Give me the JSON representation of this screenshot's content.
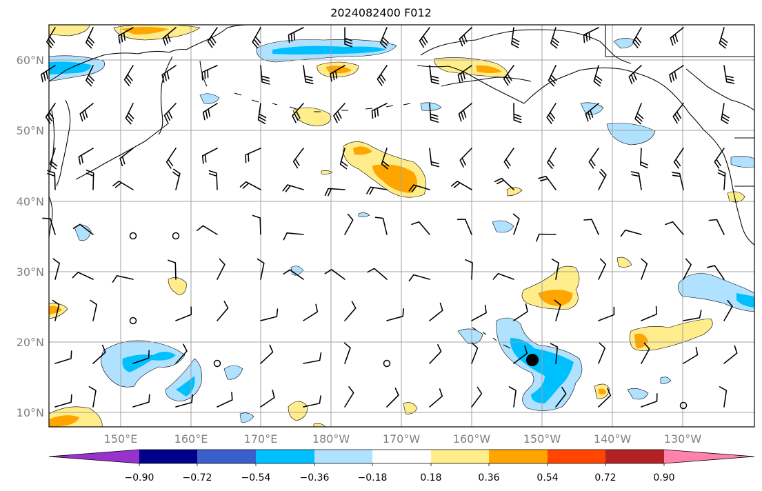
{
  "title": "2024082400 F012",
  "axes": {
    "lat_labels": [
      "60°N",
      "50°N",
      "40°N",
      "30°N",
      "20°N",
      "10°N"
    ],
    "lon_labels": [
      "150°E",
      "160°E",
      "170°E",
      "180°W",
      "170°W",
      "160°W",
      "150°W",
      "140°W",
      "130°W"
    ]
  },
  "colorbar": {
    "tick_labels": [
      "−0.90",
      "−0.72",
      "−0.54",
      "−0.36",
      "−0.18",
      "0.18",
      "0.36",
      "0.54",
      "0.72",
      "0.90"
    ],
    "colors": [
      "#9932cc",
      "#00008b",
      "#3a5fcd",
      "#00bfff",
      "#b0e2ff",
      "#ffffff",
      "#ffec8b",
      "#ffa500",
      "#ff4500",
      "#b22222",
      "#ff82ab"
    ],
    "extend": "both"
  },
  "map": {
    "region": "North Pacific",
    "lat_range": [
      8,
      65
    ],
    "lon_range_east": [
      140,
      247
    ],
    "gridlines": true,
    "features": [
      "coastlines",
      "shaded anomaly field",
      "wind barbs",
      "storm marker"
    ]
  }
}
